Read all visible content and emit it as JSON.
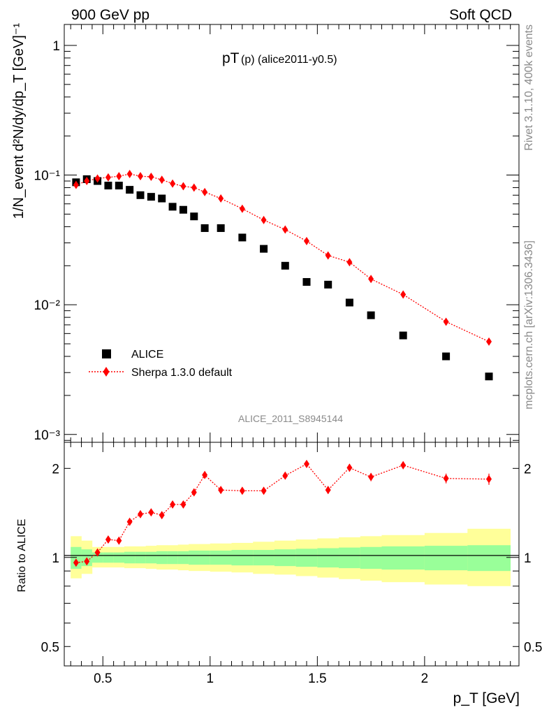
{
  "header": {
    "left": "900 GeV pp",
    "right": "Soft QCD"
  },
  "side": {
    "rivet": "Rivet 3.1.10,  400k events",
    "mcplots": "mcplots.cern.ch [arXiv:1306.3436]"
  },
  "chart_data": [
    {
      "type": "scatter",
      "title_main": "pT",
      "title_sub": "(p) (alice2011-y0.5)",
      "ylabel": "1/N_event d²N/dy/dp_T [GeV]⁻¹",
      "yscale": "log",
      "ylim": [
        0.00087,
        1.45
      ],
      "xlim": [
        0.32,
        2.44
      ],
      "y_ticks": [
        {
          "value": 1,
          "label": "1"
        },
        {
          "value": 0.1,
          "label": "10⁻¹"
        },
        {
          "value": 0.01,
          "label": "10⁻²"
        },
        {
          "value": 0.001,
          "label": "10⁻³"
        }
      ],
      "watermark": "ALICE_2011_S8945144",
      "legend_position": "bottom-left",
      "series": [
        {
          "name": "ALICE",
          "marker": "square",
          "color": "#000000",
          "x": [
            0.375,
            0.425,
            0.475,
            0.525,
            0.575,
            0.625,
            0.675,
            0.725,
            0.775,
            0.825,
            0.875,
            0.925,
            0.975,
            1.05,
            1.15,
            1.25,
            1.35,
            1.45,
            1.55,
            1.65,
            1.75,
            1.9,
            2.1,
            2.3
          ],
          "y": [
            0.088,
            0.093,
            0.09,
            0.083,
            0.083,
            0.077,
            0.07,
            0.068,
            0.066,
            0.057,
            0.054,
            0.048,
            0.039,
            0.039,
            0.033,
            0.027,
            0.02,
            0.015,
            0.0143,
            0.0104,
            0.0083,
            0.0058,
            0.004,
            0.0028
          ]
        },
        {
          "name": "Sherpa 1.3.0 default",
          "marker": "diamond",
          "line": "dotted",
          "color": "#ff0000",
          "x": [
            0.375,
            0.425,
            0.475,
            0.525,
            0.575,
            0.625,
            0.675,
            0.725,
            0.775,
            0.825,
            0.875,
            0.925,
            0.975,
            1.05,
            1.15,
            1.25,
            1.35,
            1.45,
            1.55,
            1.65,
            1.75,
            1.9,
            2.1,
            2.3
          ],
          "y": [
            0.084,
            0.09,
            0.094,
            0.096,
            0.098,
            0.102,
            0.098,
            0.097,
            0.092,
            0.086,
            0.082,
            0.08,
            0.074,
            0.066,
            0.055,
            0.045,
            0.038,
            0.031,
            0.024,
            0.0213,
            0.0158,
            0.012,
            0.0074,
            0.0052
          ]
        }
      ]
    },
    {
      "type": "scatter",
      "ylabel": "Ratio to ALICE",
      "yscale": "log",
      "ylim": [
        0.43,
        2.45
      ],
      "xlim": [
        0.32,
        2.44
      ],
      "xlabel": "p_T [GeV]",
      "x_ticks": [
        {
          "value": 0.5,
          "label": "0.5"
        },
        {
          "value": 1,
          "label": "1"
        },
        {
          "value": 1.5,
          "label": "1.5"
        },
        {
          "value": 2,
          "label": "2"
        }
      ],
      "y_ticks": [
        {
          "value": 0.5,
          "label": "0.5"
        },
        {
          "value": 1,
          "label": "1"
        },
        {
          "value": 2,
          "label": "2"
        }
      ],
      "reference_line": 1,
      "band_colors": {
        "stat": "#99ff99",
        "total": "#ffff99"
      },
      "bands": {
        "x_edges": [
          0.35,
          0.4,
          0.45,
          0.5,
          0.55,
          0.6,
          0.65,
          0.7,
          0.75,
          0.8,
          0.85,
          0.9,
          0.95,
          1.0,
          1.1,
          1.2,
          1.3,
          1.4,
          1.5,
          1.6,
          1.7,
          1.8,
          2.0,
          2.2,
          2.4
        ],
        "stat_lo": [
          0.915,
          0.935,
          0.96,
          0.96,
          0.96,
          0.955,
          0.955,
          0.955,
          0.95,
          0.95,
          0.95,
          0.945,
          0.945,
          0.945,
          0.94,
          0.94,
          0.935,
          0.93,
          0.925,
          0.92,
          0.915,
          0.91,
          0.905,
          0.9
        ],
        "stat_hi": [
          1.085,
          1.065,
          1.04,
          1.04,
          1.04,
          1.045,
          1.045,
          1.045,
          1.05,
          1.05,
          1.05,
          1.055,
          1.055,
          1.055,
          1.06,
          1.06,
          1.065,
          1.07,
          1.075,
          1.08,
          1.085,
          1.09,
          1.095,
          1.1
        ],
        "tot_lo": [
          0.85,
          0.88,
          0.925,
          0.925,
          0.925,
          0.92,
          0.92,
          0.915,
          0.91,
          0.91,
          0.905,
          0.9,
          0.9,
          0.895,
          0.89,
          0.88,
          0.875,
          0.865,
          0.855,
          0.845,
          0.835,
          0.825,
          0.81,
          0.8
        ],
        "tot_hi": [
          1.18,
          1.14,
          1.085,
          1.085,
          1.085,
          1.09,
          1.09,
          1.095,
          1.1,
          1.1,
          1.105,
          1.11,
          1.11,
          1.115,
          1.12,
          1.13,
          1.14,
          1.15,
          1.16,
          1.17,
          1.18,
          1.19,
          1.21,
          1.25
        ]
      },
      "series": [
        {
          "name": "Sherpa 1.3.0 default",
          "marker": "diamond",
          "line": "dotted",
          "color": "#ff0000",
          "x": [
            0.375,
            0.425,
            0.475,
            0.525,
            0.575,
            0.625,
            0.675,
            0.725,
            0.775,
            0.825,
            0.875,
            0.925,
            0.975,
            1.05,
            1.15,
            1.25,
            1.35,
            1.45,
            1.55,
            1.65,
            1.75,
            1.9,
            2.1,
            2.3
          ],
          "y": [
            0.96,
            0.97,
            1.04,
            1.15,
            1.14,
            1.32,
            1.4,
            1.42,
            1.39,
            1.51,
            1.51,
            1.66,
            1.9,
            1.69,
            1.68,
            1.68,
            1.89,
            2.07,
            1.69,
            2.01,
            1.87,
            2.05,
            1.85,
            1.84
          ],
          "yerr": [
            0.02,
            0.02,
            0.02,
            0.02,
            0.02,
            0.02,
            0.02,
            0.02,
            0.02,
            0.02,
            0.02,
            0.03,
            0.03,
            0.03,
            0.03,
            0.03,
            0.04,
            0.05,
            0.05,
            0.06,
            0.06,
            0.06,
            0.07,
            0.08
          ]
        }
      ]
    }
  ]
}
